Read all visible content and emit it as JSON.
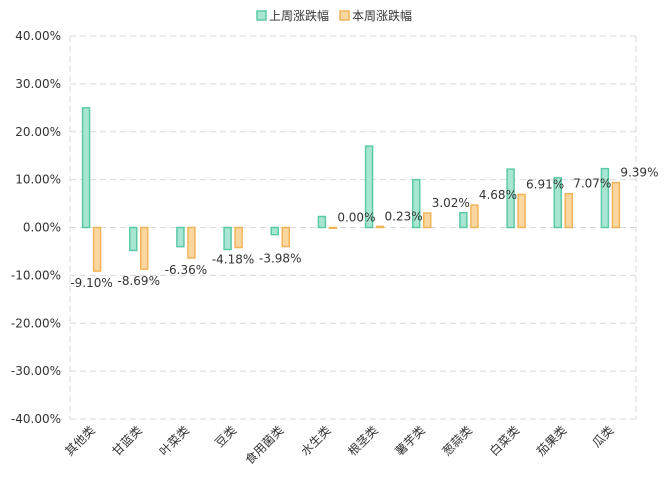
{
  "chart_data": {
    "type": "bar",
    "categories": [
      "其他类",
      "甘蓝类",
      "叶菜类",
      "豆类",
      "食用菌类",
      "水生类",
      "根茎类",
      "薯芋类",
      "葱蒜类",
      "白菜类",
      "茄果类",
      "瓜类"
    ],
    "series": [
      {
        "name": "上周涨跌幅",
        "values": [
          25.0,
          -4.8,
          -4.0,
          -4.6,
          -1.5,
          2.3,
          17.0,
          10.0,
          3.1,
          12.2,
          10.4,
          12.3
        ],
        "color": "#5CC9A7",
        "fill": "#A8E6D2"
      },
      {
        "name": "本周涨跌幅",
        "values": [
          -9.1,
          -8.69,
          -6.36,
          -4.18,
          -3.98,
          0.0,
          0.23,
          3.02,
          4.68,
          6.91,
          7.07,
          9.39
        ],
        "labels": [
          "-9.10%",
          "-8.69%",
          "-6.36%",
          "-4.18%",
          "-3.98%",
          "0.00%",
          "0.23%",
          "3.02%",
          "4.68%",
          "6.91%",
          "7.07%",
          "9.39%"
        ],
        "color": "#F2B45A",
        "fill": "#FAD7A0"
      }
    ],
    "y_ticks": [
      "40.00%",
      "30.00%",
      "20.00%",
      "10.00%",
      "0.00%",
      "-10.00%",
      "-20.00%",
      "-30.00%",
      "-40.00%"
    ],
    "ylim": [
      -40,
      40
    ],
    "grid": true,
    "legend_position": "top-center",
    "title": "",
    "xlabel": "",
    "ylabel": ""
  }
}
